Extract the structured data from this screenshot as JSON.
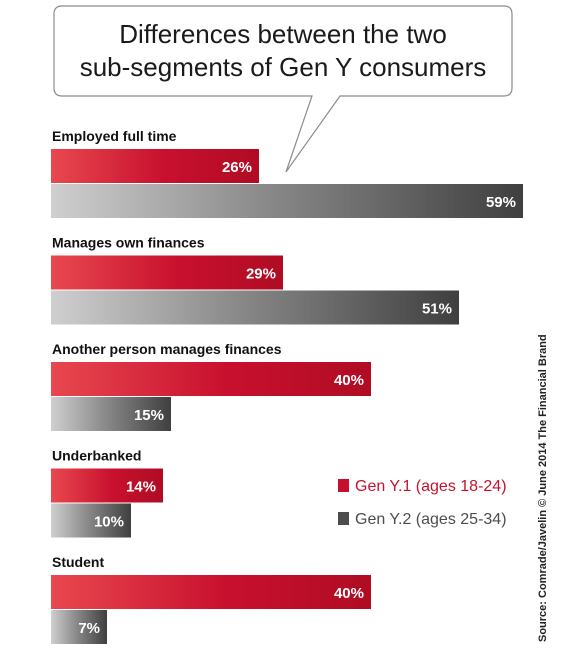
{
  "chart_data": {
    "type": "bar",
    "orientation": "horizontal",
    "title": "Differences between the two sub-segments of Gen Y consumers",
    "title_lines": [
      "Differences between the two",
      "sub-segments of Gen Y consumers"
    ],
    "categories": [
      "Employed full time",
      "Manages own finances",
      "Another person manages finances",
      "Underbanked",
      "Student"
    ],
    "series": [
      {
        "name": "Gen Y.1 (ages 18-24)",
        "values": [
          26,
          29,
          40,
          14,
          40
        ],
        "labels": [
          "26%",
          "29%",
          "40%",
          "14%",
          "40%"
        ],
        "color": "#c8102e"
      },
      {
        "name": "Gen Y.2 (ages 25-34)",
        "values": [
          59,
          51,
          15,
          10,
          7
        ],
        "labels": [
          "59%",
          "51%",
          "15%",
          "10%",
          "7%"
        ],
        "color": "#4d4d4d"
      }
    ],
    "legend_position": "right",
    "source": "Source: Comrade/Javelin © June 2014 The Financial Brand",
    "grid": false
  }
}
